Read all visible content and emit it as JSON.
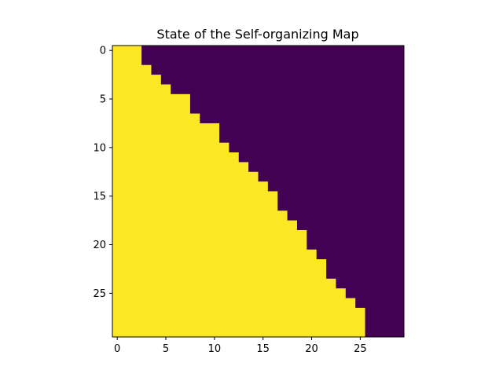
{
  "chart_data": {
    "type": "heatmap",
    "title": "State of the Self-organizing Map",
    "xlabel": "",
    "ylabel": "",
    "grid": false,
    "colors": {
      "high": "#fde725",
      "low": "#440154",
      "frame": "#000000"
    },
    "n_rows": 30,
    "n_cols": 30,
    "xlim": [
      -0.5,
      29.5
    ],
    "ylim": [
      29.5,
      -0.5
    ],
    "x_ticks": [
      0,
      5,
      10,
      15,
      20,
      25
    ],
    "y_ticks": [
      0,
      5,
      10,
      15,
      20,
      25
    ],
    "x_tick_labels": [
      "0",
      "5",
      "10",
      "15",
      "20",
      "25"
    ],
    "y_tick_labels": [
      "0",
      "5",
      "10",
      "15",
      "20",
      "25"
    ],
    "values_description": "cell value 1 (yellow) for columns 0..boundary[row]-1, value 0 (purple) otherwise",
    "row_boundary": [
      3,
      3,
      4,
      5,
      6,
      8,
      8,
      9,
      11,
      11,
      12,
      13,
      14,
      15,
      16,
      17,
      17,
      18,
      19,
      20,
      20,
      21,
      22,
      22,
      23,
      24,
      25,
      26,
      26,
      26
    ]
  }
}
